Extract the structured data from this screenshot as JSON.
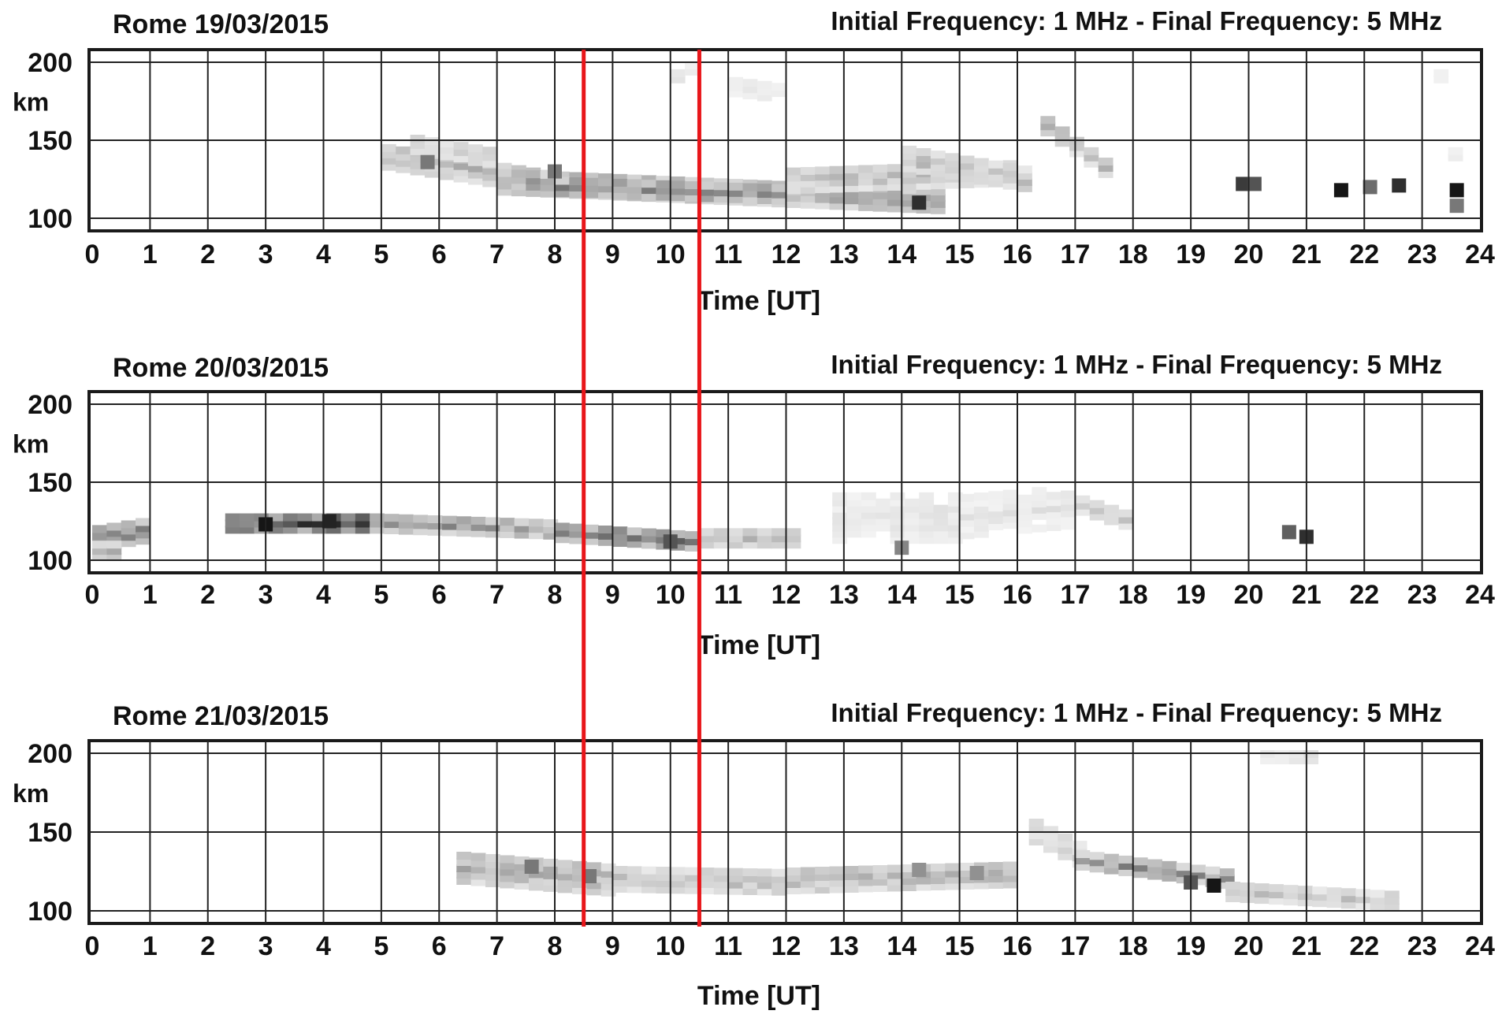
{
  "chart_data": {
    "type": "heatmap",
    "xlabel": "Time [UT]",
    "ylabel": "km",
    "xlim": [
      0,
      24
    ],
    "ylim": [
      100,
      210
    ],
    "x_ticks": [
      "0",
      "1",
      "2",
      "3",
      "4",
      "5",
      "6",
      "7",
      "8",
      "9",
      "10",
      "11",
      "12",
      "13",
      "14",
      "15",
      "16",
      "17",
      "18",
      "19",
      "20",
      "21",
      "22",
      "23",
      "24"
    ],
    "y_ticks": [
      "100",
      "150",
      "200"
    ],
    "grid": true,
    "highlight_times": [
      8.5,
      10.5
    ],
    "highlight_color": "#e8161a",
    "frequency_label": "Initial Frequency: 1 MHz - Final Frequency: 5 MHz",
    "panels": [
      {
        "title": "Rome 19/03/2015",
        "x_label": "Time [UT]",
        "traces": [
          {
            "t0": 5.0,
            "t1": 8.0,
            "h0": 140,
            "h1": 122,
            "w": 14,
            "i": 0.32
          },
          {
            "t0": 5.5,
            "t1": 6.8,
            "h0": 148,
            "h1": 140,
            "w": 10,
            "i": 0.22
          },
          {
            "t0": 7.0,
            "t1": 14.6,
            "h0": 124,
            "h1": 112,
            "w": 14,
            "i": 0.4
          },
          {
            "t0": 8.0,
            "t1": 12.0,
            "h0": 120,
            "h1": 115,
            "w": 8,
            "i": 0.55
          },
          {
            "t0": 12.0,
            "t1": 16.0,
            "h0": 125,
            "h1": 130,
            "w": 14,
            "i": 0.28
          },
          {
            "t0": 14.0,
            "t1": 16.2,
            "h0": 138,
            "h1": 124,
            "w": 12,
            "i": 0.3
          },
          {
            "t0": 16.4,
            "t1": 17.6,
            "h0": 160,
            "h1": 128,
            "w": 10,
            "i": 0.3
          },
          {
            "t0": 10.0,
            "t1": 10.5,
            "h0": 190,
            "h1": 200,
            "w": 10,
            "i": 0.12
          },
          {
            "t0": 11.0,
            "t1": 12.0,
            "h0": 185,
            "h1": 180,
            "w": 10,
            "i": 0.12
          },
          {
            "t0": 23.2,
            "t1": 23.5,
            "h0": 190,
            "h1": 130,
            "w": 10,
            "i": 0.1
          }
        ],
        "blobs": [
          {
            "t": 5.8,
            "h": 136,
            "i": 0.55
          },
          {
            "t": 8.0,
            "h": 130,
            "i": 0.55
          },
          {
            "t": 14.3,
            "h": 110,
            "i": 0.85
          },
          {
            "t": 19.9,
            "h": 122,
            "i": 0.8
          },
          {
            "t": 20.1,
            "h": 122,
            "i": 0.7
          },
          {
            "t": 21.6,
            "h": 118,
            "i": 0.95
          },
          {
            "t": 22.1,
            "h": 120,
            "i": 0.6
          },
          {
            "t": 22.6,
            "h": 121,
            "i": 0.85
          },
          {
            "t": 23.6,
            "h": 118,
            "i": 0.95
          },
          {
            "t": 23.6,
            "h": 108,
            "i": 0.55
          }
        ]
      },
      {
        "title": "Rome 20/03/2015",
        "x_label": "Time [UT]",
        "traces": [
          {
            "t0": 0.0,
            "t1": 1.0,
            "h0": 114,
            "h1": 120,
            "w": 12,
            "i": 0.55
          },
          {
            "t0": 0.0,
            "t1": 0.5,
            "h0": 106,
            "h1": 106,
            "w": 8,
            "i": 0.35
          },
          {
            "t0": 2.3,
            "t1": 4.8,
            "h0": 124,
            "h1": 124,
            "w": 9,
            "i": 0.85
          },
          {
            "t0": 4.8,
            "t1": 8.0,
            "h0": 124,
            "h1": 120,
            "w": 9,
            "i": 0.45
          },
          {
            "t0": 8.0,
            "t1": 10.5,
            "h0": 118,
            "h1": 112,
            "w": 9,
            "i": 0.6
          },
          {
            "t0": 10.5,
            "t1": 12.2,
            "h0": 114,
            "h1": 114,
            "w": 8,
            "i": 0.3
          },
          {
            "t0": 12.8,
            "t1": 15.0,
            "h0": 128,
            "h1": 128,
            "w": 30,
            "i": 0.12
          },
          {
            "t0": 15.0,
            "t1": 17.0,
            "h0": 128,
            "h1": 135,
            "w": 24,
            "i": 0.12
          },
          {
            "t0": 17.0,
            "t1": 18.0,
            "h0": 135,
            "h1": 123,
            "w": 8,
            "i": 0.22
          }
        ],
        "blobs": [
          {
            "t": 3.0,
            "h": 123,
            "i": 0.95
          },
          {
            "t": 4.1,
            "h": 125,
            "i": 0.9
          },
          {
            "t": 10.0,
            "h": 112,
            "i": 0.7
          },
          {
            "t": 14.0,
            "h": 108,
            "i": 0.5
          },
          {
            "t": 20.7,
            "h": 118,
            "i": 0.65
          },
          {
            "t": 21.0,
            "h": 115,
            "i": 0.85
          }
        ]
      },
      {
        "title": "Rome 21/03/2015",
        "x_label": "Time [UT]",
        "traces": [
          {
            "t0": 6.3,
            "t1": 9.0,
            "h0": 128,
            "h1": 120,
            "w": 18,
            "i": 0.35
          },
          {
            "t0": 9.0,
            "t1": 12.0,
            "h0": 120,
            "h1": 118,
            "w": 12,
            "i": 0.28
          },
          {
            "t0": 12.0,
            "t1": 16.0,
            "h0": 120,
            "h1": 124,
            "w": 14,
            "i": 0.32
          },
          {
            "t0": 16.2,
            "t1": 17.0,
            "h0": 150,
            "h1": 135,
            "w": 12,
            "i": 0.22
          },
          {
            "t0": 17.0,
            "t1": 19.6,
            "h0": 132,
            "h1": 120,
            "w": 8,
            "i": 0.45
          },
          {
            "t0": 19.6,
            "t1": 22.5,
            "h0": 112,
            "h1": 106,
            "w": 8,
            "i": 0.25
          },
          {
            "t0": 20.2,
            "t1": 21.2,
            "h0": 198,
            "h1": 198,
            "w": 5,
            "i": 0.15
          }
        ],
        "blobs": [
          {
            "t": 7.6,
            "h": 128,
            "i": 0.55
          },
          {
            "t": 8.6,
            "h": 122,
            "i": 0.55
          },
          {
            "t": 14.3,
            "h": 126,
            "i": 0.45
          },
          {
            "t": 15.3,
            "h": 124,
            "i": 0.45
          },
          {
            "t": 19.0,
            "h": 118,
            "i": 0.7
          },
          {
            "t": 19.4,
            "h": 116,
            "i": 0.95
          }
        ]
      }
    ]
  }
}
